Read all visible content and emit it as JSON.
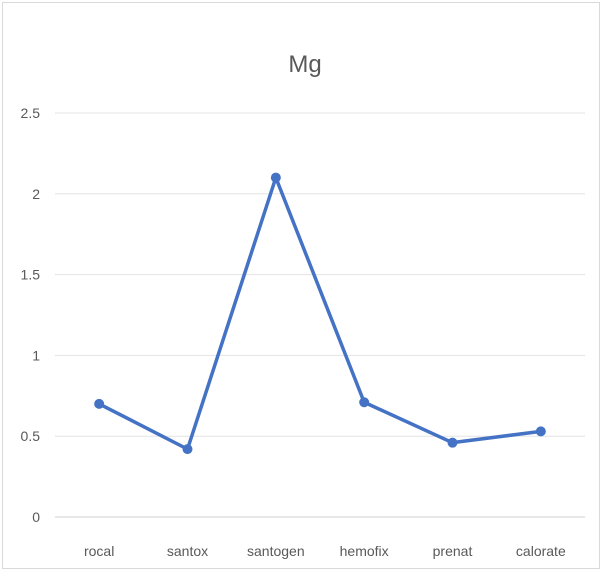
{
  "chart_data": {
    "type": "line",
    "title": "Mg",
    "xlabel": "",
    "ylabel": "",
    "categories": [
      "rocal",
      "santox",
      "santogen",
      "hemofix",
      "prenat",
      "calorate"
    ],
    "series": [
      {
        "values": [
          0.7,
          0.42,
          2.1,
          0.71,
          0.46,
          0.53
        ]
      }
    ],
    "ylim": [
      0,
      2.5
    ],
    "yticks": [
      "0",
      "0.5",
      "1",
      "1.5",
      "2",
      "2.5"
    ],
    "grid": true,
    "legend": "none",
    "colors": {
      "line": "#4472c4",
      "grid": "#e3e3e3",
      "text": "#595959"
    }
  }
}
